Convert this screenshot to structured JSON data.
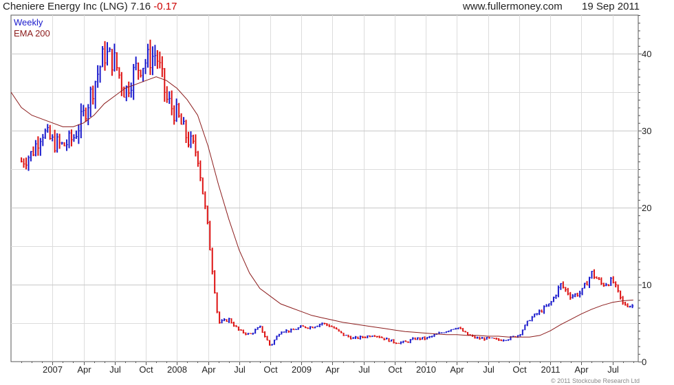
{
  "header": {
    "company": "Cheniere Energy Inc (LNG)",
    "price": "7.16",
    "change": "-0.17",
    "site": "www.fullermoney.com",
    "date": "19 Sep 2011"
  },
  "footer": {
    "copyright": "© 2011 Stockcube Research Ltd"
  },
  "colors": {
    "up": "#1a1acc",
    "down": "#dd1111",
    "ema": "#8b1a1a",
    "grid": "#dcdcdc",
    "frame": "#555555"
  },
  "chart_data": {
    "type": "line",
    "frequency": "weekly",
    "legend": [
      {
        "name": "Weekly",
        "color": "#1a1acc"
      },
      {
        "name": "EMA 200",
        "color": "#8b1a1a"
      }
    ],
    "legend_placement": "top-left",
    "y_axis": {
      "side": "right",
      "ticks": [
        0,
        10,
        20,
        30,
        40
      ],
      "ylim": [
        0,
        45
      ]
    },
    "x_axis": {
      "ticks": [
        "2007",
        "Apr",
        "Jul",
        "Oct",
        "2008",
        "Apr",
        "Jul",
        "Oct",
        "2009",
        "Apr",
        "Jul",
        "Oct",
        "2010",
        "Apr",
        "Jul",
        "Oct",
        "2011",
        "Apr",
        "Jul"
      ],
      "range": [
        "2006-09",
        "2011-09"
      ]
    },
    "grid": true,
    "price_series": {
      "name": "Weekly",
      "x": [
        "2006-10",
        "2006-11",
        "2006-12",
        "2007-01",
        "2007-02",
        "2007-03",
        "2007-04",
        "2007-05",
        "2007-06",
        "2007-07",
        "2007-08",
        "2007-09",
        "2007-10",
        "2007-11",
        "2007-12",
        "2008-01",
        "2008-02",
        "2008-03",
        "2008-04",
        "2008-05",
        "2008-06",
        "2008-07",
        "2008-08",
        "2008-09",
        "2008-10",
        "2008-11",
        "2008-12",
        "2009-01",
        "2009-02",
        "2009-03",
        "2009-04",
        "2009-05",
        "2009-06",
        "2009-07",
        "2009-08",
        "2009-09",
        "2009-10",
        "2009-11",
        "2009-12",
        "2010-01",
        "2010-02",
        "2010-03",
        "2010-04",
        "2010-05",
        "2010-06",
        "2010-07",
        "2010-08",
        "2010-09",
        "2010-10",
        "2010-11",
        "2010-12",
        "2011-01",
        "2011-02",
        "2011-03",
        "2011-04",
        "2011-05",
        "2011-06",
        "2011-07",
        "2011-08",
        "2011-09"
      ],
      "y": [
        26,
        27,
        30,
        28.5,
        28,
        29,
        32,
        36,
        40,
        39,
        35,
        38,
        39,
        40,
        34,
        32,
        29,
        27,
        17,
        5,
        5.5,
        4,
        3.5,
        4.5,
        2,
        4,
        4,
        4.5,
        4.5,
        5,
        4.5,
        3.5,
        3,
        3.2,
        3.5,
        3,
        2.5,
        2.5,
        3,
        3,
        3.5,
        4,
        4.5,
        3.5,
        3,
        3,
        2.8,
        3,
        3.5,
        5.5,
        6.5,
        7.5,
        10,
        8.5,
        9,
        11.5,
        10,
        10.5,
        7.5,
        7.2
      ]
    },
    "ema_series": {
      "name": "EMA 200",
      "x": [
        "2006-09",
        "2006-10",
        "2006-11",
        "2006-12",
        "2007-01",
        "2007-02",
        "2007-03",
        "2007-04",
        "2007-05",
        "2007-06",
        "2007-07",
        "2007-08",
        "2007-09",
        "2007-10",
        "2007-11",
        "2007-12",
        "2008-01",
        "2008-02",
        "2008-03",
        "2008-04",
        "2008-05",
        "2008-06",
        "2008-07",
        "2008-08",
        "2008-09",
        "2008-10",
        "2008-11",
        "2008-12",
        "2009-01",
        "2009-02",
        "2009-03",
        "2009-04",
        "2009-05",
        "2009-06",
        "2009-07",
        "2009-08",
        "2009-09",
        "2009-10",
        "2009-11",
        "2009-12",
        "2010-01",
        "2010-02",
        "2010-03",
        "2010-04",
        "2010-05",
        "2010-06",
        "2010-07",
        "2010-08",
        "2010-09",
        "2010-10",
        "2010-11",
        "2010-12",
        "2011-01",
        "2011-02",
        "2011-03",
        "2011-04",
        "2011-05",
        "2011-06",
        "2011-07",
        "2011-08",
        "2011-09"
      ],
      "y": [
        35,
        33,
        32,
        31.5,
        31,
        30.5,
        30.5,
        31,
        32,
        33.5,
        34.5,
        35.5,
        36,
        36.5,
        37,
        36.5,
        35.5,
        34,
        32,
        28,
        23,
        18.5,
        14.5,
        11.5,
        9.5,
        8.5,
        7.5,
        7,
        6.5,
        6,
        5.7,
        5.4,
        5.1,
        4.9,
        4.7,
        4.5,
        4.3,
        4.1,
        3.9,
        3.8,
        3.7,
        3.6,
        3.5,
        3.5,
        3.4,
        3.4,
        3.3,
        3.3,
        3.2,
        3.2,
        3.2,
        3.4,
        4,
        4.8,
        5.5,
        6.2,
        6.8,
        7.3,
        7.7,
        7.9,
        8
      ]
    }
  }
}
